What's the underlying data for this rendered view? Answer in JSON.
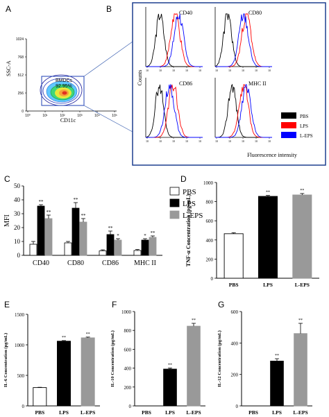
{
  "panels": {
    "a": {
      "letter": "A",
      "ylabel": "SSC-A",
      "xlabel": "CD11c",
      "y_ticks": [
        "1024",
        "768",
        "512",
        "256",
        "0"
      ],
      "x_ticks": [
        "10⁰",
        "10¹",
        "10²",
        "10³",
        "10⁴",
        "10⁵"
      ],
      "gate_name": "BMDCs",
      "gate_percent": "92.95%"
    },
    "b": {
      "letter": "B",
      "histograms": [
        "CD40",
        "CD80",
        "CD86",
        "MHC II"
      ],
      "ylabel": "Counts",
      "xlabel": "Fluorescence intensity",
      "x_tick_label": "10",
      "legend": [
        {
          "label": "PBS",
          "color": "#000000"
        },
        {
          "label": "LPS",
          "color": "#ff0000"
        },
        {
          "label": "L-EPS",
          "color": "#0000ff"
        }
      ]
    },
    "c": {
      "letter": "C"
    },
    "d": {
      "letter": "D"
    },
    "e": {
      "letter": "E"
    },
    "f": {
      "letter": "F"
    },
    "g": {
      "letter": "G"
    }
  },
  "chart_data": [
    {
      "id": "C",
      "type": "bar",
      "ylabel": "MFI",
      "categories": [
        "CD40",
        "CD80",
        "CD86",
        "MHC II"
      ],
      "ylim": [
        0,
        50
      ],
      "yticks": [
        0,
        10,
        20,
        30,
        40,
        50
      ],
      "legend": "top-right",
      "series": [
        {
          "name": "PBS",
          "color": "#ffffff",
          "values": [
            8,
            9,
            3.2,
            3.5
          ],
          "errors": [
            2,
            1,
            0.8,
            0.7
          ],
          "sig": [
            "",
            "",
            "",
            ""
          ]
        },
        {
          "name": "LPS",
          "color": "#000000",
          "values": [
            35.5,
            34,
            15,
            11
          ],
          "errors": [
            1,
            4,
            2.5,
            1
          ],
          "sig": [
            "**",
            "**",
            "**",
            "*"
          ]
        },
        {
          "name": "L-EPS",
          "color": "#999999",
          "values": [
            26.5,
            24,
            11,
            13
          ],
          "errors": [
            2.5,
            2.5,
            1,
            1
          ],
          "sig": [
            "**",
            "**",
            "*",
            "**"
          ]
        }
      ]
    },
    {
      "id": "D",
      "type": "bar",
      "ylabel": "TNF-α Concentration (pg/mL)",
      "categories": [
        "PBS",
        "LPS",
        "L-EPS"
      ],
      "colors": [
        "#ffffff",
        "#000000",
        "#999999"
      ],
      "values": [
        465,
        855,
        870
      ],
      "errors": [
        10,
        10,
        15
      ],
      "sig": [
        "",
        "**",
        "**"
      ],
      "ylim": [
        0,
        1000
      ],
      "yticks": [
        0,
        200,
        400,
        600,
        800,
        1000
      ]
    },
    {
      "id": "E",
      "type": "bar",
      "ylabel": "IL-6 Concentration (pg/mL)",
      "categories": [
        "PBS",
        "LPS",
        "L-EPS"
      ],
      "colors": [
        "#ffffff",
        "#000000",
        "#999999"
      ],
      "values": [
        300,
        1060,
        1115
      ],
      "errors": [
        5,
        10,
        12
      ],
      "sig": [
        "",
        "**",
        "**"
      ],
      "ylim": [
        0,
        1500
      ],
      "yticks": [
        0,
        500,
        1000,
        1500
      ]
    },
    {
      "id": "F",
      "type": "bar",
      "ylabel": "IL-10 Concentration (pg/mL)",
      "categories": [
        "PBS",
        "LPS",
        "L-EPS"
      ],
      "colors": [
        "#ffffff",
        "#000000",
        "#999999"
      ],
      "values": [
        0,
        390,
        845
      ],
      "errors": [
        0,
        12,
        30
      ],
      "sig": [
        "",
        "**",
        "**"
      ],
      "ylim": [
        0,
        1000
      ],
      "yticks": [
        0,
        200,
        400,
        600,
        800,
        1000
      ]
    },
    {
      "id": "G",
      "type": "bar",
      "ylabel": "IL-12 Concentration (pg/mL)",
      "categories": [
        "PBS",
        "LPS",
        "L-EPS"
      ],
      "colors": [
        "#ffffff",
        "#000000",
        "#999999"
      ],
      "values": [
        0,
        285,
        460
      ],
      "errors": [
        0,
        15,
        65
      ],
      "sig": [
        "",
        "**",
        "**"
      ],
      "ylim": [
        0,
        600
      ],
      "yticks": [
        0,
        200,
        400,
        600
      ]
    }
  ]
}
